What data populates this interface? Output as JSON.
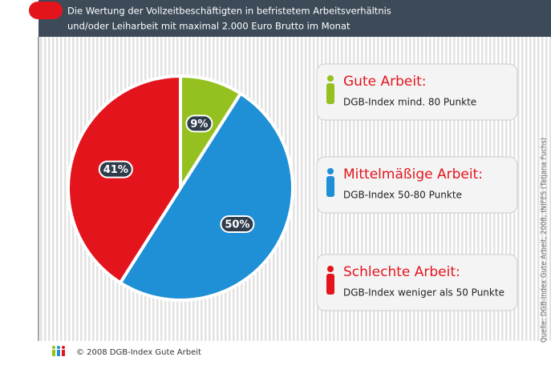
{
  "chart_data": {
    "type": "pie",
    "title": [
      "Die Wertung der Vollzeitbeschäftigten in befristetem Arbeitsverhältnis",
      "und/oder Leiharbeit mit maximal 2.000 Euro Brutto im Monat"
    ],
    "categories": [
      "Gute Arbeit:",
      "Mittelmäßige Arbeit:",
      "Schlechte Arbeit:"
    ],
    "descriptions": [
      "DGB-Index mind. 80 Punkte",
      "DGB-Index 50-80 Punkte",
      "DGB-Index weniger als 50 Punkte"
    ],
    "values": [
      9,
      50,
      41
    ],
    "value_labels": [
      "9%",
      "50%",
      "41%"
    ],
    "colors": [
      "#94c11f",
      "#1f8fd6",
      "#e3141c"
    ],
    "source": "Quelle: DGB-Index Gute Arbeit, 2008, INIFES (Tatjana Fuchs)",
    "footer": "© 2008 DGB-Index Gute Arbeit"
  }
}
